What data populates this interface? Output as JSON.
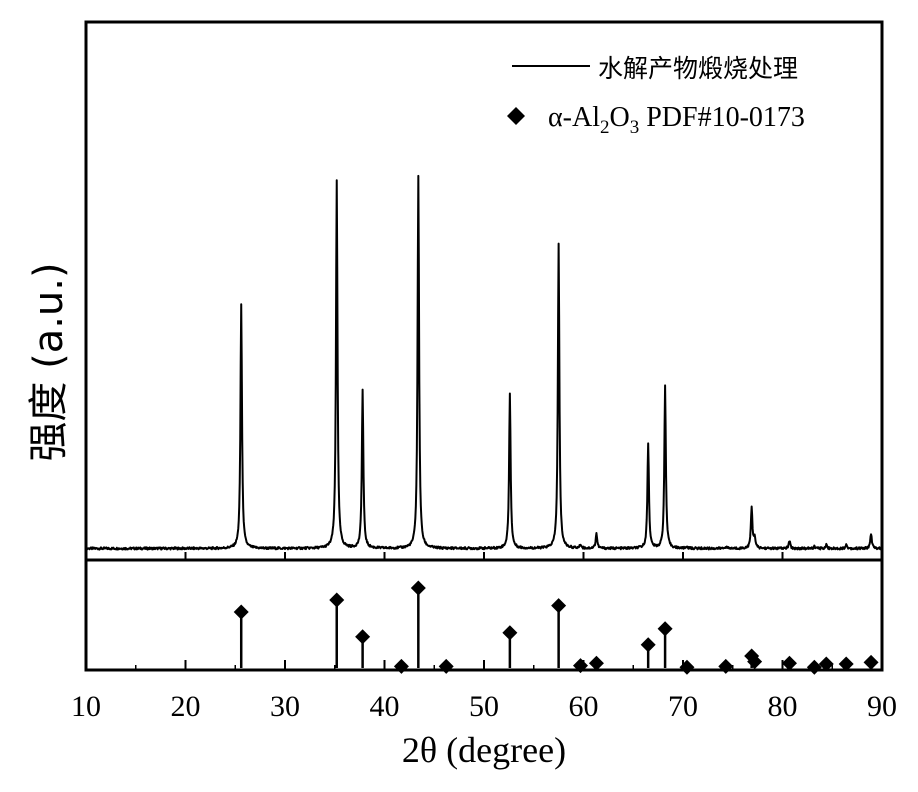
{
  "chart_data": {
    "type": "line",
    "xlabel": "2θ (degree)",
    "ylabel": "强度 (a.u.)",
    "xlim": [
      10,
      90
    ],
    "xticks": [
      "10",
      "20",
      "30",
      "40",
      "50",
      "60",
      "70",
      "80",
      "90"
    ],
    "grid": false,
    "legend_position": "top-right",
    "series": [
      {
        "name": "水解产物煅烧处理",
        "style": "line",
        "color": "#000000",
        "baseline": 2,
        "ylim": [
          0,
          100
        ],
        "peaks": [
          {
            "x": 25.6,
            "y": 67
          },
          {
            "x": 35.2,
            "y": 100
          },
          {
            "x": 37.8,
            "y": 44
          },
          {
            "x": 43.4,
            "y": 101
          },
          {
            "x": 52.6,
            "y": 43
          },
          {
            "x": 57.5,
            "y": 83
          },
          {
            "x": 59.7,
            "y": 3
          },
          {
            "x": 61.3,
            "y": 6
          },
          {
            "x": 66.5,
            "y": 30
          },
          {
            "x": 68.2,
            "y": 45
          },
          {
            "x": 70.4,
            "y": 2.5
          },
          {
            "x": 74.3,
            "y": 2.5
          },
          {
            "x": 76.9,
            "y": 13
          },
          {
            "x": 77.2,
            "y": 5
          },
          {
            "x": 80.7,
            "y": 4
          },
          {
            "x": 83.2,
            "y": 2.5
          },
          {
            "x": 84.4,
            "y": 3
          },
          {
            "x": 86.4,
            "y": 3
          },
          {
            "x": 88.9,
            "y": 6
          }
        ]
      },
      {
        "name": "α-Al₂O₃ PDF#10-0173",
        "legend_parts": {
          "prefix": "α-Al",
          "sub1": "2",
          "mid": "O",
          "sub2": "3",
          "suffix": " PDF#10-0173"
        },
        "style": "stick-diamond",
        "color": "#000000",
        "ylim": [
          0,
          100
        ],
        "points": [
          {
            "x": 25.6,
            "y": 70
          },
          {
            "x": 35.2,
            "y": 85
          },
          {
            "x": 37.8,
            "y": 39
          },
          {
            "x": 41.7,
            "y": 2
          },
          {
            "x": 43.4,
            "y": 100
          },
          {
            "x": 46.2,
            "y": 2
          },
          {
            "x": 52.6,
            "y": 44
          },
          {
            "x": 57.5,
            "y": 78
          },
          {
            "x": 59.7,
            "y": 3
          },
          {
            "x": 61.3,
            "y": 6
          },
          {
            "x": 66.5,
            "y": 29
          },
          {
            "x": 68.2,
            "y": 49
          },
          {
            "x": 70.4,
            "y": 1
          },
          {
            "x": 74.3,
            "y": 2
          },
          {
            "x": 76.9,
            "y": 15
          },
          {
            "x": 77.2,
            "y": 8
          },
          {
            "x": 80.7,
            "y": 6
          },
          {
            "x": 83.2,
            "y": 1
          },
          {
            "x": 84.4,
            "y": 5
          },
          {
            "x": 86.4,
            "y": 5
          },
          {
            "x": 88.9,
            "y": 7
          }
        ]
      }
    ]
  }
}
